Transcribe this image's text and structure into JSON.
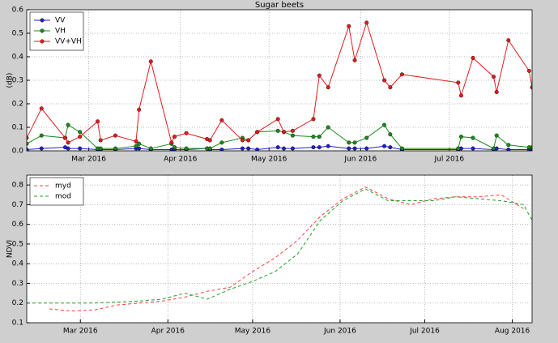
{
  "chart_data": [
    {
      "type": "line",
      "title": "Sugar beets",
      "y_label": "(dB)",
      "markers": true,
      "line_style": "solid",
      "grid": true,
      "legend": "upper left",
      "x": [
        40,
        45,
        53,
        54,
        58,
        64,
        65,
        70,
        77,
        78,
        82,
        89,
        90,
        94,
        101,
        102,
        106,
        113,
        115,
        118,
        125,
        127,
        130,
        137,
        139,
        142,
        149,
        151,
        155,
        161,
        163,
        167,
        186,
        187,
        191,
        198,
        199,
        203,
        210,
        211
      ],
      "xlim": [
        40,
        211
      ],
      "xticks": [
        {
          "value": 61,
          "label": "Mar 2016"
        },
        {
          "value": 92,
          "label": "Apr 2016"
        },
        {
          "value": 122,
          "label": "May 2016"
        },
        {
          "value": 153,
          "label": "Jun 2016"
        },
        {
          "value": 183,
          "label": "Jul 2016"
        }
      ],
      "ylim": [
        0,
        0.6
      ],
      "yticks": [
        {
          "value": 0,
          "label": "0.0"
        },
        0.1,
        0.2,
        0.3,
        0.4,
        0.5,
        0.6
      ],
      "series": [
        {
          "name": "VV",
          "color": "#1f1fd0",
          "values": [
            0.005,
            0.01,
            0.015,
            0.01,
            0.01,
            0.005,
            0.005,
            0.005,
            0.01,
            0.01,
            0.005,
            0.005,
            0.005,
            0.005,
            0.01,
            0.005,
            0.005,
            0.01,
            0.01,
            0.005,
            0.015,
            0.01,
            0.01,
            0.015,
            0.015,
            0.02,
            0.01,
            0.01,
            0.01,
            0.02,
            0.015,
            0.005,
            0.005,
            0.01,
            0.01,
            0.005,
            0.01,
            0.005,
            0.005,
            0.005
          ]
        },
        {
          "name": "VH",
          "color": "#1a8a1a",
          "values": [
            0.03,
            0.065,
            0.055,
            0.11,
            0.08,
            0.01,
            0.01,
            0.01,
            0.02,
            0.03,
            0.01,
            0.03,
            0.015,
            0.01,
            0.01,
            0.01,
            0.035,
            0.055,
            0.045,
            0.08,
            0.085,
            0.08,
            0.065,
            0.06,
            0.06,
            0.1,
            0.035,
            0.035,
            0.055,
            0.11,
            0.07,
            0.01,
            0.01,
            0.06,
            0.055,
            0.01,
            0.065,
            0.025,
            0.015,
            0.015
          ]
        },
        {
          "name": "VV+VH",
          "color": "#e41a1c",
          "values": [
            0.055,
            0.18,
            0.055,
            0.035,
            0.06,
            0.125,
            0.045,
            0.065,
            0.04,
            0.175,
            0.38,
            0.035,
            0.06,
            0.075,
            0.05,
            0.045,
            0.13,
            0.045,
            0.045,
            0.08,
            0.135,
            0.08,
            0.085,
            0.135,
            0.32,
            0.27,
            0.53,
            0.385,
            0.545,
            0.3,
            0.27,
            0.325,
            0.29,
            0.235,
            0.395,
            0.315,
            0.25,
            0.47,
            0.34,
            0.27
          ]
        }
      ]
    },
    {
      "type": "line",
      "y_label": "NDVI",
      "markers": false,
      "line_style": "dashed",
      "grid": true,
      "legend": "upper left",
      "x": [
        42,
        50,
        58,
        66,
        74,
        82,
        90,
        98,
        106,
        114,
        122,
        130,
        138,
        146,
        154,
        162,
        170,
        178,
        186,
        194,
        202,
        210,
        218,
        221
      ],
      "xlim": [
        42,
        221
      ],
      "xticks": [
        {
          "value": 61,
          "label": "Mar 2016"
        },
        {
          "value": 92,
          "label": "Apr 2016"
        },
        {
          "value": 122,
          "label": "May 2016"
        },
        {
          "value": 153,
          "label": "Jun 2016"
        },
        {
          "value": 183,
          "label": "Jul 2016"
        },
        {
          "value": 214,
          "label": "Aug 2016"
        }
      ],
      "ylim": [
        0.1,
        0.85
      ],
      "yticks": [
        0.1,
        0.2,
        0.3,
        0.4,
        0.5,
        0.6,
        0.7,
        0.8
      ],
      "series": [
        {
          "name": "myd",
          "color": "#ff4040",
          "values": [
            null,
            0.17,
            0.16,
            0.165,
            0.19,
            0.2,
            0.21,
            0.23,
            0.26,
            0.28,
            0.36,
            0.43,
            0.52,
            0.64,
            0.73,
            0.79,
            0.73,
            0.7,
            0.73,
            0.74,
            0.74,
            0.75,
            0.68,
            null
          ]
        },
        {
          "name": "mod",
          "color": "#22a022",
          "values": [
            0.2,
            0.2,
            0.2,
            0.2,
            0.205,
            0.21,
            0.22,
            0.25,
            0.22,
            0.27,
            0.31,
            0.36,
            0.45,
            0.62,
            0.72,
            0.78,
            0.72,
            0.72,
            0.72,
            0.74,
            0.73,
            0.72,
            0.7,
            0.62
          ]
        }
      ]
    }
  ]
}
